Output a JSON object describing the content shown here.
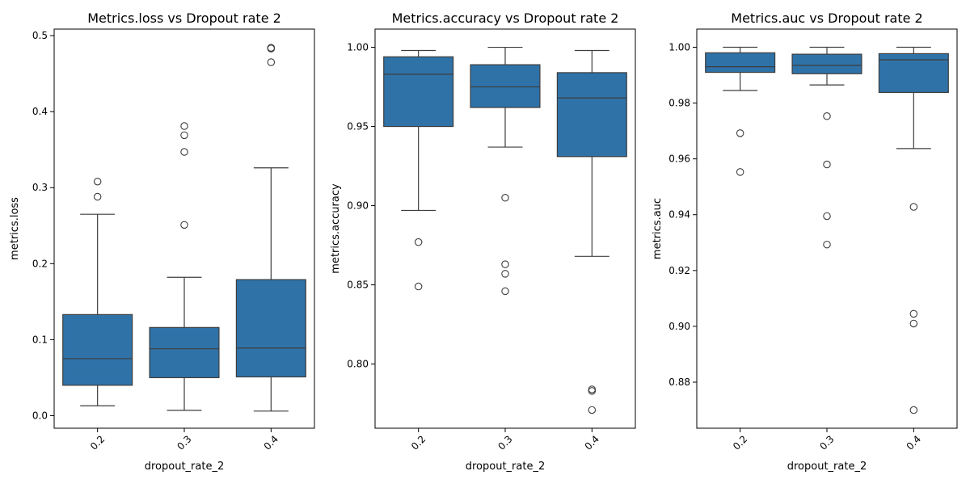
{
  "chart_data": [
    {
      "type": "box",
      "title": "Metrics.loss vs Dropout rate 2",
      "xlabel": "dropout_rate_2",
      "ylabel": "metrics.loss",
      "categories": [
        "0.2",
        "0.3",
        "0.4"
      ],
      "ylim": [
        -0.0165,
        0.5086
      ],
      "yticks": [
        "0.0",
        "0.1",
        "0.2",
        "0.3",
        "0.4",
        "0.5"
      ],
      "ytick_values": [
        0.0,
        0.1,
        0.2,
        0.3,
        0.4,
        0.5
      ],
      "grid": false,
      "box_color": "#2f72a8",
      "boxes": [
        {
          "category": "0.2",
          "whislo": 0.013,
          "q1": 0.04,
          "median": 0.075,
          "q3": 0.133,
          "whishi": 0.265,
          "fliers": [
            0.288,
            0.308
          ]
        },
        {
          "category": "0.3",
          "whislo": 0.007,
          "q1": 0.05,
          "median": 0.088,
          "q3": 0.116,
          "whishi": 0.182,
          "fliers": [
            0.251,
            0.347,
            0.369,
            0.381
          ]
        },
        {
          "category": "0.4",
          "whislo": 0.006,
          "q1": 0.051,
          "median": 0.089,
          "q3": 0.179,
          "whishi": 0.326,
          "fliers": [
            0.465,
            0.483,
            0.484
          ]
        }
      ]
    },
    {
      "type": "box",
      "title": "Metrics.accuracy vs Dropout rate 2",
      "xlabel": "dropout_rate_2",
      "ylabel": "metrics.accuracy",
      "categories": [
        "0.2",
        "0.3",
        "0.4"
      ],
      "ylim": [
        0.7595,
        1.0115
      ],
      "yticks": [
        "0.80",
        "0.85",
        "0.90",
        "0.95",
        "1.00"
      ],
      "ytick_values": [
        0.8,
        0.85,
        0.9,
        0.95,
        1.0
      ],
      "grid": false,
      "box_color": "#2f72a8",
      "boxes": [
        {
          "category": "0.2",
          "whislo": 0.897,
          "q1": 0.95,
          "median": 0.983,
          "q3": 0.994,
          "whishi": 0.998,
          "fliers": [
            0.849,
            0.877
          ]
        },
        {
          "category": "0.3",
          "whislo": 0.937,
          "q1": 0.962,
          "median": 0.975,
          "q3": 0.989,
          "whishi": 1.0,
          "fliers": [
            0.846,
            0.857,
            0.863,
            0.905
          ]
        },
        {
          "category": "0.4",
          "whislo": 0.868,
          "q1": 0.931,
          "median": 0.968,
          "q3": 0.984,
          "whishi": 0.998,
          "fliers": [
            0.771,
            0.783,
            0.784
          ]
        }
      ]
    },
    {
      "type": "box",
      "title": "Metrics.auc vs Dropout rate 2",
      "xlabel": "dropout_rate_2",
      "ylabel": "metrics.auc",
      "categories": [
        "0.2",
        "0.3",
        "0.4"
      ],
      "ylim": [
        0.8635,
        1.0065
      ],
      "yticks": [
        "0.88",
        "0.90",
        "0.92",
        "0.94",
        "0.96",
        "0.98",
        "1.00"
      ],
      "ytick_values": [
        0.88,
        0.9,
        0.92,
        0.94,
        0.96,
        0.98,
        1.0
      ],
      "grid": false,
      "box_color": "#2f72a8",
      "boxes": [
        {
          "category": "0.2",
          "whislo": 0.9845,
          "q1": 0.991,
          "median": 0.993,
          "q3": 0.998,
          "whishi": 1.0,
          "fliers": [
            0.9553,
            0.9692
          ]
        },
        {
          "category": "0.3",
          "whislo": 0.9865,
          "q1": 0.9905,
          "median": 0.9935,
          "q3": 0.9975,
          "whishi": 1.0,
          "fliers": [
            0.9293,
            0.9395,
            0.958,
            0.9753
          ]
        },
        {
          "category": "0.4",
          "whislo": 0.9637,
          "q1": 0.9838,
          "median": 0.9955,
          "q3": 0.9977,
          "whishi": 1.0,
          "fliers": [
            0.87,
            0.901,
            0.9045,
            0.9428
          ]
        }
      ]
    }
  ]
}
